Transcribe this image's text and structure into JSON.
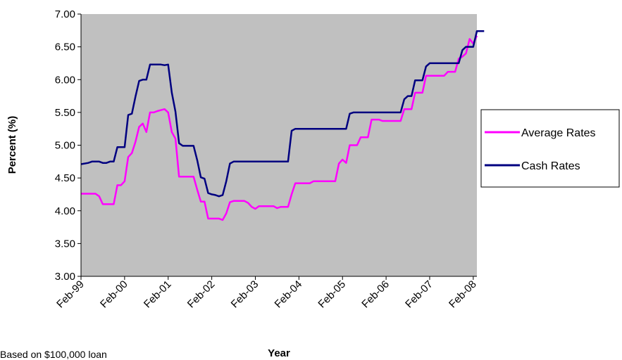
{
  "chart_data": {
    "type": "line",
    "xlabel": "Year",
    "ylabel": "Percent (%)",
    "ylim": [
      3.0,
      7.0
    ],
    "y_ticks": [
      "3.00",
      "3.50",
      "4.00",
      "4.50",
      "5.00",
      "5.50",
      "6.00",
      "6.50",
      "7.00"
    ],
    "x_ticks": [
      "Feb-99",
      "Feb-00",
      "Feb-01",
      "Feb-02",
      "Feb-03",
      "Feb-04",
      "Feb-05",
      "Feb-06",
      "Feb-07",
      "Feb-08"
    ],
    "grid": false,
    "legend_position": "right",
    "plot_background": "#c0c0c0",
    "series": [
      {
        "name": "Average Rates",
        "color": "#ff00ff",
        "points": [
          [
            "1999-02",
            4.26
          ],
          [
            "1999-06",
            4.26
          ],
          [
            "1999-07",
            4.22
          ],
          [
            "1999-08",
            4.1
          ],
          [
            "1999-11",
            4.1
          ],
          [
            "1999-12",
            4.39
          ],
          [
            "2000-01",
            4.39
          ],
          [
            "2000-02",
            4.45
          ],
          [
            "2000-03",
            4.82
          ],
          [
            "2000-04",
            4.88
          ],
          [
            "2000-05",
            5.05
          ],
          [
            "2000-06",
            5.28
          ],
          [
            "2000-07",
            5.33
          ],
          [
            "2000-08",
            5.2
          ],
          [
            "2000-09",
            5.5
          ],
          [
            "2000-10",
            5.5
          ],
          [
            "2000-11",
            5.52
          ],
          [
            "2001-01",
            5.55
          ],
          [
            "2001-02",
            5.5
          ],
          [
            "2001-03",
            5.2
          ],
          [
            "2001-04",
            5.1
          ],
          [
            "2001-05",
            4.52
          ],
          [
            "2001-09",
            4.52
          ],
          [
            "2001-10",
            4.32
          ],
          [
            "2001-11",
            4.14
          ],
          [
            "2001-12",
            4.14
          ],
          [
            "2002-01",
            3.88
          ],
          [
            "2002-04",
            3.88
          ],
          [
            "2002-05",
            3.86
          ],
          [
            "2002-06",
            3.96
          ],
          [
            "2002-07",
            4.13
          ],
          [
            "2002-08",
            4.15
          ],
          [
            "2002-11",
            4.15
          ],
          [
            "2002-12",
            4.12
          ],
          [
            "2003-01",
            4.06
          ],
          [
            "2003-02",
            4.03
          ],
          [
            "2003-03",
            4.07
          ],
          [
            "2003-07",
            4.07
          ],
          [
            "2003-08",
            4.04
          ],
          [
            "2003-09",
            4.06
          ],
          [
            "2003-11",
            4.06
          ],
          [
            "2003-12",
            4.25
          ],
          [
            "2004-01",
            4.42
          ],
          [
            "2004-05",
            4.42
          ],
          [
            "2004-06",
            4.45
          ],
          [
            "2004-12",
            4.45
          ],
          [
            "2005-01",
            4.72
          ],
          [
            "2005-02",
            4.78
          ],
          [
            "2005-03",
            4.73
          ],
          [
            "2005-04",
            5.0
          ],
          [
            "2005-06",
            5.0
          ],
          [
            "2005-07",
            5.12
          ],
          [
            "2005-09",
            5.12
          ],
          [
            "2005-10",
            5.39
          ],
          [
            "2005-12",
            5.39
          ],
          [
            "2006-01",
            5.37
          ],
          [
            "2006-06",
            5.37
          ],
          [
            "2006-07",
            5.55
          ],
          [
            "2006-09",
            5.55
          ],
          [
            "2006-10",
            5.8
          ],
          [
            "2006-12",
            5.8
          ],
          [
            "2007-01",
            6.06
          ],
          [
            "2007-06",
            6.06
          ],
          [
            "2007-07",
            6.12
          ],
          [
            "2007-09",
            6.12
          ],
          [
            "2007-10",
            6.32
          ],
          [
            "2007-11",
            6.35
          ],
          [
            "2007-12",
            6.4
          ],
          [
            "2008-01",
            6.62
          ],
          [
            "2008-02",
            6.55
          ],
          [
            "2008-03",
            6.67
          ]
        ]
      },
      {
        "name": "Cash Rates",
        "color": "#000080",
        "points": [
          [
            "1999-02",
            4.71
          ],
          [
            "1999-04",
            4.73
          ],
          [
            "1999-05",
            4.75
          ],
          [
            "1999-07",
            4.75
          ],
          [
            "1999-08",
            4.73
          ],
          [
            "1999-09",
            4.73
          ],
          [
            "1999-10",
            4.75
          ],
          [
            "1999-11",
            4.75
          ],
          [
            "1999-12",
            4.97
          ],
          [
            "2000-02",
            4.97
          ],
          [
            "2000-03",
            5.46
          ],
          [
            "2000-04",
            5.48
          ],
          [
            "2000-05",
            5.74
          ],
          [
            "2000-06",
            5.98
          ],
          [
            "2000-07",
            6.0
          ],
          [
            "2000-08",
            6.0
          ],
          [
            "2000-09",
            6.23
          ],
          [
            "2000-12",
            6.23
          ],
          [
            "2001-01",
            6.22
          ],
          [
            "2001-02",
            6.23
          ],
          [
            "2001-03",
            5.8
          ],
          [
            "2001-04",
            5.51
          ],
          [
            "2001-05",
            5.03
          ],
          [
            "2001-06",
            4.99
          ],
          [
            "2001-09",
            4.99
          ],
          [
            "2001-10",
            4.77
          ],
          [
            "2001-11",
            4.51
          ],
          [
            "2001-12",
            4.49
          ],
          [
            "2002-01",
            4.27
          ],
          [
            "2002-02",
            4.25
          ],
          [
            "2002-03",
            4.24
          ],
          [
            "2002-04",
            4.22
          ],
          [
            "2002-05",
            4.24
          ],
          [
            "2002-06",
            4.45
          ],
          [
            "2002-07",
            4.72
          ],
          [
            "2002-08",
            4.75
          ],
          [
            "2003-11",
            4.75
          ],
          [
            "2003-12",
            5.22
          ],
          [
            "2004-01",
            5.25
          ],
          [
            "2005-03",
            5.25
          ],
          [
            "2005-04",
            5.48
          ],
          [
            "2005-05",
            5.5
          ],
          [
            "2006-06",
            5.5
          ],
          [
            "2006-07",
            5.7
          ],
          [
            "2006-08",
            5.75
          ],
          [
            "2006-09",
            5.75
          ],
          [
            "2006-10",
            5.99
          ],
          [
            "2006-12",
            5.99
          ],
          [
            "2007-01",
            6.2
          ],
          [
            "2007-02",
            6.25
          ],
          [
            "2007-10",
            6.25
          ],
          [
            "2007-11",
            6.45
          ],
          [
            "2007-12",
            6.5
          ],
          [
            "2008-02",
            6.5
          ],
          [
            "2008-03",
            6.74
          ],
          [
            "2008-05",
            6.74
          ]
        ]
      }
    ]
  },
  "footnote": "Based on $100,000 loan"
}
